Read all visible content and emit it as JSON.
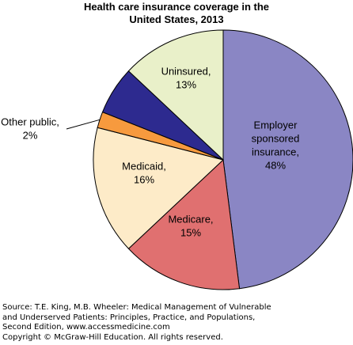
{
  "chart_data": {
    "type": "pie",
    "title": [
      "Health care insurance coverage in the",
      "United States, 2013"
    ],
    "slices": [
      {
        "label": [
          "Employer",
          "sponsored",
          "insurance,",
          "48%"
        ],
        "value": 48,
        "color": "#8a86c4"
      },
      {
        "label": [
          "Medicare,",
          "15%"
        ],
        "value": 15,
        "color": "#e07070"
      },
      {
        "label": [
          "Medicaid,",
          "16%"
        ],
        "value": 16,
        "color": "#fdebc8"
      },
      {
        "label": [
          "Other public,",
          "2%"
        ],
        "value": 2,
        "color": "#f79a3e"
      },
      {
        "label": [],
        "value": 6,
        "color": "#2d2a8f"
      },
      {
        "label": [
          "Uninsured,",
          "13%"
        ],
        "value": 13,
        "color": "#e9f0c9"
      }
    ]
  },
  "source": [
    "Source: T.E. King, M.B. Wheeler: Medical Management of Vulnerable",
    "and Underserved Patients: Principles, Practice, and Populations,",
    "Second Edition, www.accessmedicine.com",
    "Copyright © McGraw-Hill Education. All rights reserved."
  ]
}
